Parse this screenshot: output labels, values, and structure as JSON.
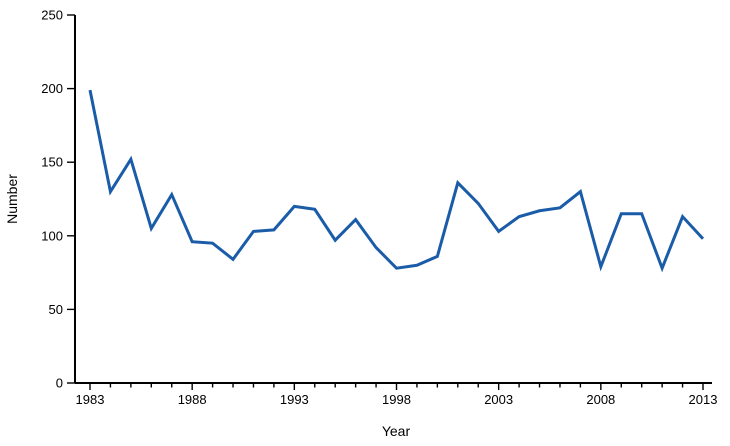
{
  "chart_data": {
    "type": "line",
    "x": [
      1983,
      1984,
      1985,
      1986,
      1987,
      1988,
      1989,
      1990,
      1991,
      1992,
      1993,
      1994,
      1995,
      1996,
      1997,
      1998,
      1999,
      2000,
      2001,
      2002,
      2003,
      2004,
      2005,
      2006,
      2007,
      2008,
      2009,
      2010,
      2011,
      2012,
      2013
    ],
    "series": [
      {
        "name": "Number",
        "values": [
          199,
          130,
          152,
          105,
          128,
          96,
          95,
          84,
          103,
          104,
          120,
          118,
          97,
          111,
          92,
          78,
          80,
          86,
          136,
          122,
          103,
          113,
          117,
          119,
          130,
          79,
          115,
          115,
          78,
          113,
          98
        ]
      }
    ],
    "title": "",
    "xlabel": "Year",
    "ylabel": "Number",
    "ylim": [
      0,
      250
    ],
    "yticks": [
      0,
      50,
      100,
      150,
      200,
      250
    ],
    "xticks": [
      1983,
      1988,
      1993,
      1998,
      2003,
      2008,
      2013
    ],
    "line_color": "#1a5ca8",
    "axis_color": "#000000",
    "grid": false,
    "legend": "none"
  }
}
